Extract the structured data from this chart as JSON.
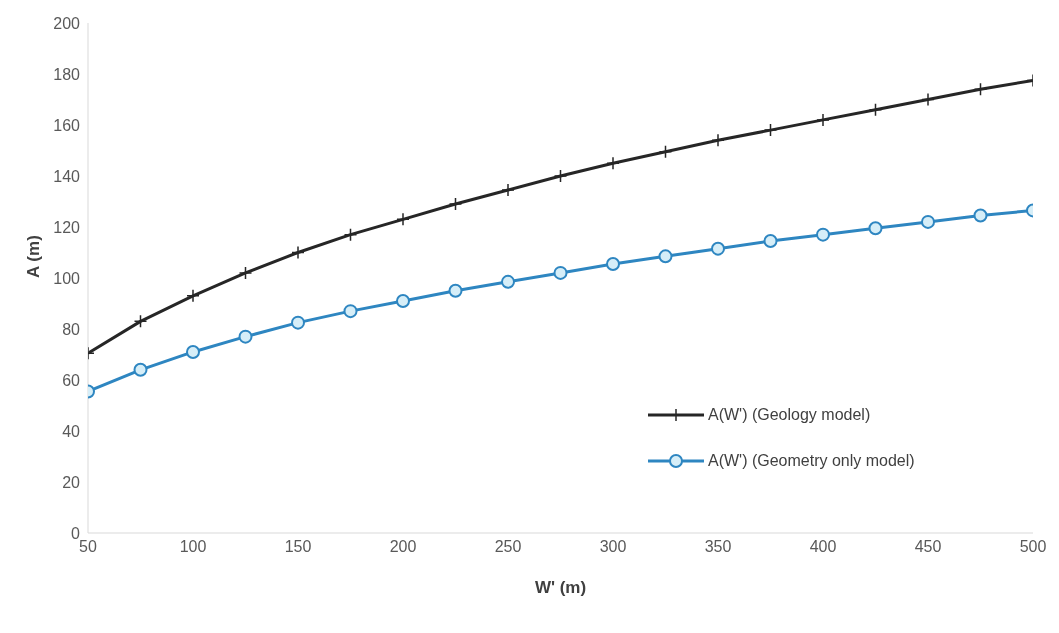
{
  "chart_data": {
    "type": "line",
    "xlabel": "W' (m)",
    "ylabel": "A (m)",
    "x": [
      50,
      75,
      100,
      125,
      150,
      175,
      200,
      225,
      250,
      275,
      300,
      325,
      350,
      375,
      400,
      425,
      450,
      475,
      500
    ],
    "xlim": [
      50,
      500
    ],
    "xticks": [
      50,
      100,
      150,
      200,
      250,
      300,
      350,
      400,
      450,
      500
    ],
    "ylim": [
      0,
      200
    ],
    "yticks": [
      0,
      20,
      40,
      60,
      80,
      100,
      120,
      140,
      160,
      180,
      200
    ],
    "grid": false,
    "legend": "right",
    "series": [
      {
        "name": "A(W') (Geology model)",
        "color": "#262626",
        "marker": "cross",
        "values": [
          70.5,
          83,
          93,
          102,
          110,
          117,
          123,
          129,
          134.5,
          140,
          145,
          149.5,
          154,
          158,
          162,
          166,
          170,
          174,
          177.5
        ]
      },
      {
        "name": "A(W') (Geometry only model)",
        "color": "#2e86c1",
        "marker": "circle",
        "values": [
          55.5,
          64,
          71,
          77,
          82.5,
          87,
          91,
          95,
          98.5,
          102,
          105.5,
          108.5,
          111.5,
          114.5,
          117,
          119.5,
          122,
          124.5,
          126.5
        ]
      }
    ]
  }
}
